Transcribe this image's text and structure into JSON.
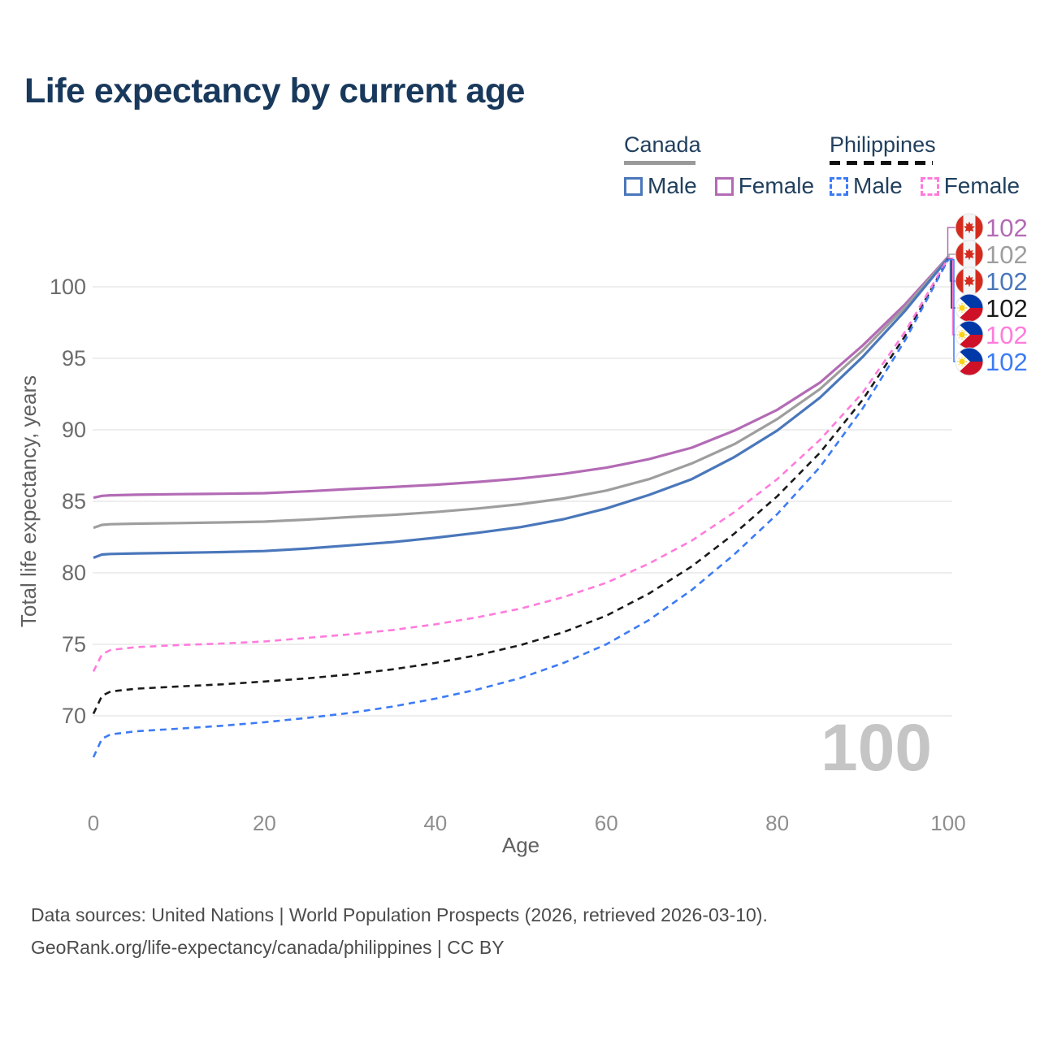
{
  "header": {
    "title": "Life expectancy by current age"
  },
  "legend": {
    "position": "top-right",
    "groups": [
      {
        "country": "Canada",
        "line_style": "solid",
        "items": [
          {
            "label": "Male",
            "color": "#4a77bb"
          },
          {
            "label": "Female",
            "color": "#b36bb5"
          }
        ]
      },
      {
        "country": "Philippines",
        "line_style": "dashed",
        "items": [
          {
            "label": "Male",
            "color": "#3d7bf5"
          },
          {
            "label": "Female",
            "color": "#ff7bdc"
          }
        ]
      }
    ]
  },
  "chart_data": {
    "type": "line",
    "title": "Life expectancy by current age",
    "xlabel": "Age",
    "ylabel": "Total life expectancy, years",
    "xlim": [
      0,
      100
    ],
    "ylim": [
      66,
      103
    ],
    "x_ticks": [
      0,
      20,
      40,
      60,
      80,
      100
    ],
    "y_ticks": [
      70,
      75,
      80,
      85,
      90,
      95,
      100
    ],
    "grid": "horizontal",
    "watermark_age": "100",
    "ages": [
      0,
      1,
      2,
      5,
      10,
      15,
      20,
      25,
      30,
      35,
      40,
      45,
      50,
      55,
      60,
      65,
      70,
      75,
      80,
      85,
      90,
      95,
      100
    ],
    "series": [
      {
        "name": "Canada Female",
        "country": "Canada",
        "flag": "canada-flag-icon",
        "color": "#b36bb5",
        "dashed": false,
        "end_label": "102",
        "values": [
          85.25,
          85.38,
          85.42,
          85.46,
          85.5,
          85.53,
          85.57,
          85.7,
          85.86,
          86.0,
          86.16,
          86.36,
          86.6,
          86.92,
          87.35,
          87.95,
          88.75,
          89.95,
          91.4,
          93.3,
          95.9,
          98.8,
          102.1
        ]
      },
      {
        "name": "Canada Total",
        "country": "Canada",
        "flag": "canada-flag-icon",
        "color": "#9e9e9e",
        "dashed": false,
        "end_label": "102",
        "values": [
          83.15,
          83.35,
          83.4,
          83.44,
          83.48,
          83.52,
          83.58,
          83.72,
          83.9,
          84.05,
          84.25,
          84.5,
          84.8,
          85.2,
          85.75,
          86.55,
          87.65,
          89.0,
          90.75,
          92.85,
          95.55,
          98.6,
          102.05
        ]
      },
      {
        "name": "Canada Male",
        "country": "Canada",
        "flag": "canada-flag-icon",
        "color": "#4a77bb",
        "dashed": false,
        "end_label": "102",
        "values": [
          81.05,
          81.28,
          81.32,
          81.36,
          81.4,
          81.45,
          81.52,
          81.7,
          81.92,
          82.15,
          82.45,
          82.8,
          83.2,
          83.75,
          84.5,
          85.45,
          86.55,
          88.1,
          89.95,
          92.25,
          95.1,
          98.35,
          102.0
        ]
      },
      {
        "name": "Philippines Total",
        "country": "Philippines",
        "flag": "philippines-flag-icon",
        "color": "#1a1a1a",
        "dashed": true,
        "end_label": "102",
        "values": [
          70.15,
          71.4,
          71.7,
          71.9,
          72.05,
          72.2,
          72.4,
          72.62,
          72.9,
          73.25,
          73.7,
          74.25,
          74.95,
          75.85,
          77.0,
          78.55,
          80.45,
          82.75,
          85.35,
          88.4,
          92.1,
          96.6,
          101.95
        ]
      },
      {
        "name": "Philippines Female",
        "country": "Philippines",
        "flag": "philippines-flag-icon",
        "color": "#ff7bdc",
        "dashed": true,
        "end_label": "102",
        "values": [
          73.1,
          74.3,
          74.6,
          74.8,
          74.95,
          75.05,
          75.2,
          75.45,
          75.7,
          76.0,
          76.4,
          76.9,
          77.5,
          78.3,
          79.3,
          80.65,
          82.25,
          84.25,
          86.55,
          89.3,
          92.6,
          96.9,
          102.0
        ]
      },
      {
        "name": "Philippines Male",
        "country": "Philippines",
        "flag": "philippines-flag-icon",
        "color": "#3d7bf5",
        "dashed": true,
        "end_label": "102",
        "values": [
          67.1,
          68.4,
          68.7,
          68.92,
          69.1,
          69.3,
          69.55,
          69.85,
          70.2,
          70.65,
          71.2,
          71.85,
          72.65,
          73.7,
          75.0,
          76.7,
          78.8,
          81.3,
          84.1,
          87.4,
          91.5,
          96.3,
          101.9
        ]
      }
    ]
  },
  "footer": {
    "line1": "Data sources: United Nations | World Population Prospects (2026, retrieved 2026-03-10).",
    "line2": "GeoRank.org/life-expectancy/canada/philippines | CC BY"
  }
}
